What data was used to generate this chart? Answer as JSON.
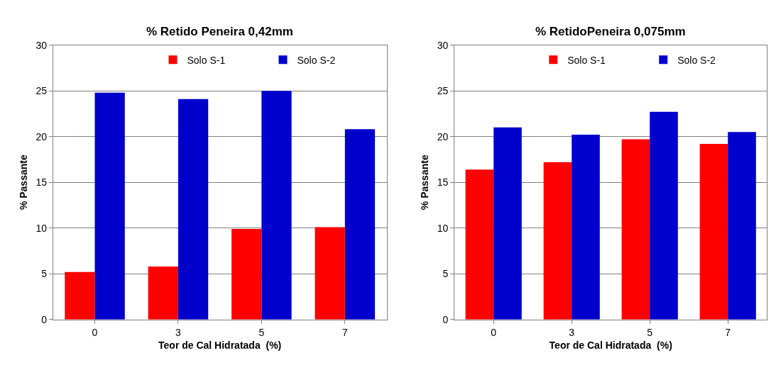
{
  "chart_data": [
    {
      "type": "bar",
      "title": "% Retido Peneira 0,42mm",
      "xlabel": "Teor de Cal Hidratada  (%)",
      "ylabel": "% Passante",
      "categories": [
        "0",
        "3",
        "5",
        "7"
      ],
      "series": [
        {
          "name": "Solo S-1",
          "color": "#ff0000",
          "values": [
            5.2,
            5.8,
            9.9,
            10.1
          ]
        },
        {
          "name": "Solo S-2",
          "color": "#0000cc",
          "values": [
            24.8,
            24.1,
            25.0,
            20.8
          ]
        }
      ],
      "ylim": [
        0,
        30
      ],
      "yticks": [
        0,
        5,
        10,
        15,
        20,
        25,
        30
      ],
      "grid": "y",
      "legend": "top right"
    },
    {
      "type": "bar",
      "title": "% RetidoPeneira 0,075mm",
      "xlabel": "Teor de Cal Hidratada  (%)",
      "ylabel": "% Passante",
      "categories": [
        "0",
        "3",
        "5",
        "7"
      ],
      "series": [
        {
          "name": "Solo S-1",
          "color": "#ff0000",
          "values": [
            16.4,
            17.2,
            19.7,
            19.2
          ]
        },
        {
          "name": "Solo S-2",
          "color": "#0000cc",
          "values": [
            21.0,
            20.2,
            22.7,
            20.5
          ]
        }
      ],
      "ylim": [
        0,
        30
      ],
      "yticks": [
        0,
        5,
        10,
        15,
        20,
        25,
        30
      ],
      "grid": "y",
      "legend": "top right"
    }
  ]
}
